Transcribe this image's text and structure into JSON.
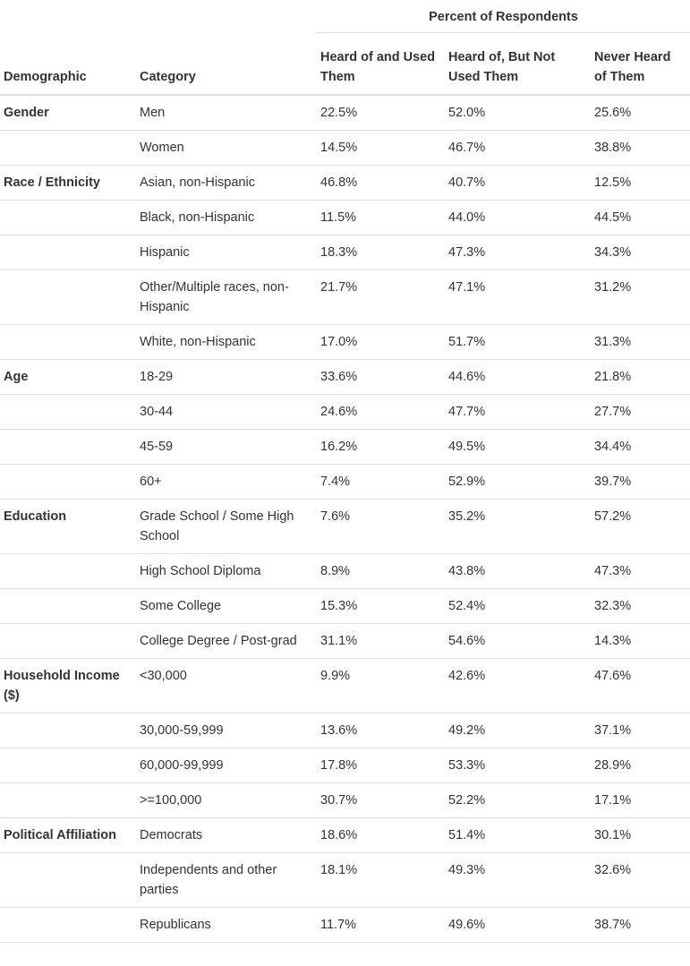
{
  "header": {
    "super": "Percent of Respondents",
    "col_demographic": "Demographic",
    "col_category": "Category",
    "col_heard_used": "Heard of and Used Them",
    "col_heard_not_used": "Heard of, But Not Used Them",
    "col_never": "Never Heard of Them"
  },
  "rows": [
    {
      "demographic": "Gender",
      "category": "Men",
      "heard_used": "22.5%",
      "heard_not_used": "52.0%",
      "never": "25.6%"
    },
    {
      "demographic": "",
      "category": "Women",
      "heard_used": "14.5%",
      "heard_not_used": "46.7%",
      "never": "38.8%"
    },
    {
      "demographic": "Race / Ethnicity",
      "category": "Asian, non-Hispanic",
      "heard_used": "46.8%",
      "heard_not_used": "40.7%",
      "never": "12.5%"
    },
    {
      "demographic": "",
      "category": "Black, non-Hispanic",
      "heard_used": "11.5%",
      "heard_not_used": "44.0%",
      "never": "44.5%"
    },
    {
      "demographic": "",
      "category": "Hispanic",
      "heard_used": "18.3%",
      "heard_not_used": "47.3%",
      "never": "34.3%"
    },
    {
      "demographic": "",
      "category": "Other/Multiple races, non-Hispanic",
      "heard_used": "21.7%",
      "heard_not_used": "47.1%",
      "never": "31.2%"
    },
    {
      "demographic": "",
      "category": "White, non-Hispanic",
      "heard_used": "17.0%",
      "heard_not_used": "51.7%",
      "never": "31.3%"
    },
    {
      "demographic": "Age",
      "category": "18-29",
      "heard_used": "33.6%",
      "heard_not_used": "44.6%",
      "never": "21.8%"
    },
    {
      "demographic": "",
      "category": "30-44",
      "heard_used": "24.6%",
      "heard_not_used": "47.7%",
      "never": "27.7%"
    },
    {
      "demographic": "",
      "category": "45-59",
      "heard_used": "16.2%",
      "heard_not_used": "49.5%",
      "never": "34.4%"
    },
    {
      "demographic": "",
      "category": "60+",
      "heard_used": "7.4%",
      "heard_not_used": "52.9%",
      "never": "39.7%"
    },
    {
      "demographic": "Education",
      "category": "Grade School / Some High School",
      "heard_used": "7.6%",
      "heard_not_used": "35.2%",
      "never": "57.2%"
    },
    {
      "demographic": "",
      "category": "High School Diploma",
      "heard_used": "8.9%",
      "heard_not_used": "43.8%",
      "never": "47.3%"
    },
    {
      "demographic": "",
      "category": "Some College",
      "heard_used": "15.3%",
      "heard_not_used": "52.4%",
      "never": "32.3%"
    },
    {
      "demographic": "",
      "category": "College Degree / Post-grad",
      "heard_used": "31.1%",
      "heard_not_used": "54.6%",
      "never": "14.3%"
    },
    {
      "demographic": "Household Income ($)",
      "category": "<30,000",
      "heard_used": "9.9%",
      "heard_not_used": "42.6%",
      "never": "47.6%"
    },
    {
      "demographic": "",
      "category": "30,000-59,999",
      "heard_used": "13.6%",
      "heard_not_used": "49.2%",
      "never": "37.1%"
    },
    {
      "demographic": "",
      "category": "60,000-99,999",
      "heard_used": "17.8%",
      "heard_not_used": "53.3%",
      "never": "28.9%"
    },
    {
      "demographic": "",
      "category": ">=100,000",
      "heard_used": "30.7%",
      "heard_not_used": "52.2%",
      "never": "17.1%"
    },
    {
      "demographic": "Political Affiliation",
      "category": "Democrats",
      "heard_used": "18.6%",
      "heard_not_used": "51.4%",
      "never": "30.1%"
    },
    {
      "demographic": "",
      "category": "Independents and other parties",
      "heard_used": "18.1%",
      "heard_not_used": "49.3%",
      "never": "32.6%"
    },
    {
      "demographic": "",
      "category": "Republicans",
      "heard_used": "11.7%",
      "heard_not_used": "49.6%",
      "never": "38.7%"
    }
  ]
}
